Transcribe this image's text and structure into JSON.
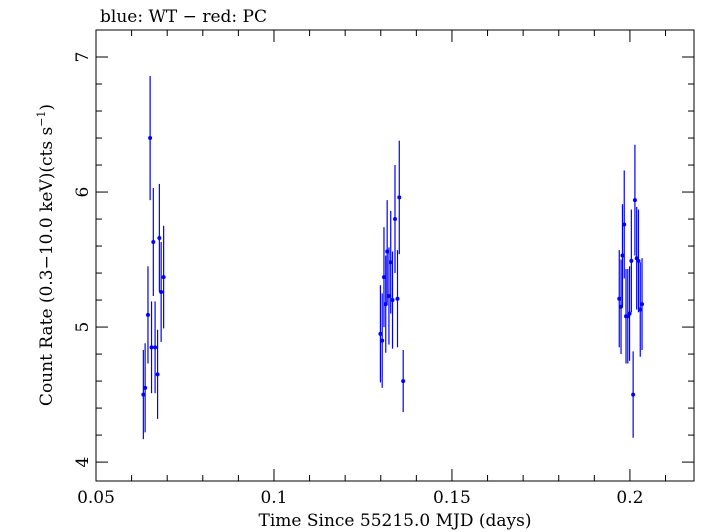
{
  "chart_data": {
    "type": "scatter",
    "title": "blue: WT − red: PC",
    "xlabel": "Time Since 55215.0 MJD (days)",
    "ylabel_main": "Count Rate (0.3−10.0 keV)(cts s",
    "ylabel_sup": "−1",
    "ylabel_close": ")",
    "xlim": [
      0.05,
      0.218
    ],
    "ylim": [
      3.86,
      7.2
    ],
    "xticks": [
      0.05,
      0.1,
      0.15,
      0.2
    ],
    "xtick_labels": [
      "0.05",
      "0.1",
      "0.15",
      "0.2"
    ],
    "yticks": [
      4,
      5,
      6,
      7
    ],
    "ytick_labels": [
      "4",
      "5",
      "6",
      "7"
    ],
    "grid": false,
    "series": [
      {
        "color": "#0000ff",
        "points": [
          {
            "x": 0.0633,
            "y": 4.5,
            "err": 0.33
          },
          {
            "x": 0.0638,
            "y": 4.55,
            "err": 0.33
          },
          {
            "x": 0.0646,
            "y": 5.09,
            "err": 0.36
          },
          {
            "x": 0.0652,
            "y": 6.4,
            "err": 0.46
          },
          {
            "x": 0.0656,
            "y": 4.85,
            "err": 0.34
          },
          {
            "x": 0.0661,
            "y": 5.63,
            "err": 0.4
          },
          {
            "x": 0.0666,
            "y": 4.85,
            "err": 0.34
          },
          {
            "x": 0.0673,
            "y": 4.65,
            "err": 0.33
          },
          {
            "x": 0.0678,
            "y": 5.66,
            "err": 0.4
          },
          {
            "x": 0.0683,
            "y": 5.26,
            "err": 0.37
          },
          {
            "x": 0.069,
            "y": 5.37,
            "err": 0.38
          },
          {
            "x": 0.1299,
            "y": 4.95,
            "err": 0.36
          },
          {
            "x": 0.1304,
            "y": 4.9,
            "err": 0.35
          },
          {
            "x": 0.1309,
            "y": 5.37,
            "err": 0.37
          },
          {
            "x": 0.1314,
            "y": 5.17,
            "err": 0.36
          },
          {
            "x": 0.1318,
            "y": 5.56,
            "err": 0.38
          },
          {
            "x": 0.1323,
            "y": 5.23,
            "err": 0.36
          },
          {
            "x": 0.1328,
            "y": 5.48,
            "err": 0.38
          },
          {
            "x": 0.1333,
            "y": 5.2,
            "err": 0.36
          },
          {
            "x": 0.134,
            "y": 5.8,
            "err": 0.4
          },
          {
            "x": 0.1347,
            "y": 5.21,
            "err": 0.36
          },
          {
            "x": 0.1352,
            "y": 5.96,
            "err": 0.42
          },
          {
            "x": 0.1363,
            "y": 4.6,
            "err": 0.23
          },
          {
            "x": 0.197,
            "y": 5.21,
            "err": 0.36
          },
          {
            "x": 0.1975,
            "y": 5.15,
            "err": 0.35
          },
          {
            "x": 0.1979,
            "y": 5.53,
            "err": 0.38
          },
          {
            "x": 0.1984,
            "y": 5.76,
            "err": 0.4
          },
          {
            "x": 0.1989,
            "y": 5.08,
            "err": 0.35
          },
          {
            "x": 0.1994,
            "y": 5.08,
            "err": 0.35
          },
          {
            "x": 0.1999,
            "y": 5.1,
            "err": 0.35
          },
          {
            "x": 0.2004,
            "y": 5.49,
            "err": 0.38
          },
          {
            "x": 0.2009,
            "y": 4.5,
            "err": 0.32
          },
          {
            "x": 0.2014,
            "y": 5.94,
            "err": 0.41
          },
          {
            "x": 0.2019,
            "y": 5.51,
            "err": 0.38
          },
          {
            "x": 0.2024,
            "y": 5.49,
            "err": 0.38
          },
          {
            "x": 0.2029,
            "y": 5.13,
            "err": 0.35
          },
          {
            "x": 0.2034,
            "y": 5.17,
            "err": 0.34
          }
        ]
      }
    ]
  }
}
